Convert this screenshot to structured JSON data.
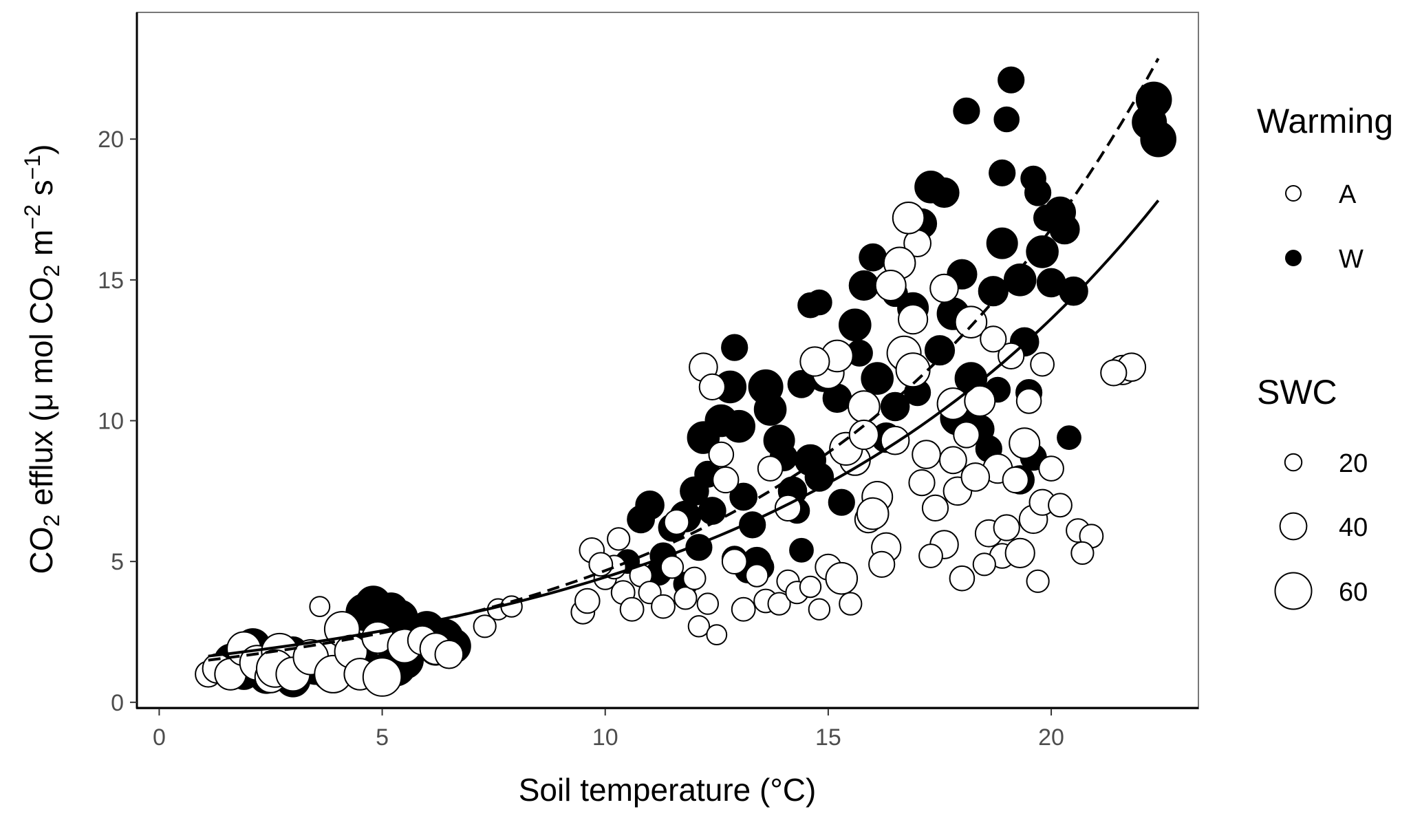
{
  "chart_data": {
    "type": "scatter",
    "xlabel": "Soil temperature (°C)",
    "ylabel_parts": [
      "CO",
      "2",
      " efflux (",
      "μ",
      " mol CO",
      "2",
      " m",
      "−2",
      " s",
      "−1",
      ")"
    ],
    "xlim": [
      -0.5,
      23.3
    ],
    "ylim": [
      -0.2,
      24.5
    ],
    "x_ticks": [
      0,
      5,
      10,
      15,
      20
    ],
    "y_ticks": [
      0,
      5,
      10,
      15,
      20
    ],
    "grid": false,
    "legend_position": "right",
    "legends": {
      "warming": {
        "title": "Warming",
        "items": [
          {
            "label": "A",
            "fill": "#ffffff"
          },
          {
            "label": "W",
            "fill": "#000000"
          }
        ]
      },
      "swc": {
        "title": "SWC",
        "items": [
          {
            "label": "20",
            "value": 20
          },
          {
            "label": "40",
            "value": 40
          },
          {
            "label": "60",
            "value": 60
          }
        ]
      }
    },
    "fits": [
      {
        "treatment": "A",
        "style": "solid",
        "a": 1.45,
        "b": 0.112,
        "x_range": [
          1.1,
          22.4
        ]
      },
      {
        "treatment": "W",
        "style": "dashed",
        "a": 1.3,
        "b": 0.128,
        "x_range": [
          1.1,
          22.4
        ]
      }
    ],
    "series": [
      {
        "treatment": "W",
        "fill": "#000000",
        "points": [
          [
            1.6,
            1.5,
            40
          ],
          [
            1.9,
            1.0,
            38
          ],
          [
            2.1,
            2.0,
            45
          ],
          [
            2.4,
            0.9,
            42
          ],
          [
            2.8,
            1.5,
            40
          ],
          [
            3.0,
            0.8,
            44
          ],
          [
            3.2,
            1.3,
            40
          ],
          [
            2.6,
            1.1,
            36
          ],
          [
            3.5,
            1.2,
            40
          ],
          [
            3.8,
            1.0,
            40
          ],
          [
            4.2,
            1.2,
            44
          ],
          [
            4.5,
            1.6,
            46
          ],
          [
            4.6,
            3.2,
            48
          ],
          [
            4.8,
            3.5,
            46
          ],
          [
            5.0,
            2.8,
            50
          ],
          [
            5.2,
            3.3,
            42
          ],
          [
            5.4,
            3.0,
            46
          ],
          [
            5.6,
            2.5,
            50
          ],
          [
            5.3,
            1.3,
            55
          ],
          [
            5.5,
            1.5,
            50
          ],
          [
            6.0,
            2.6,
            46
          ],
          [
            6.2,
            1.9,
            42
          ],
          [
            6.4,
            2.3,
            48
          ],
          [
            6.6,
            2.0,
            44
          ],
          [
            4.3,
            2.0,
            40
          ],
          [
            5.8,
            2.2,
            38
          ],
          [
            3.0,
            1.8,
            36
          ],
          [
            10.5,
            5.0,
            26
          ],
          [
            10.8,
            6.5,
            32
          ],
          [
            11.0,
            7.0,
            34
          ],
          [
            11.3,
            5.2,
            30
          ],
          [
            11.5,
            6.2,
            32
          ],
          [
            11.8,
            6.6,
            38
          ],
          [
            12.0,
            7.5,
            34
          ],
          [
            12.1,
            5.5,
            30
          ],
          [
            12.2,
            9.4,
            40
          ],
          [
            12.3,
            8.1,
            30
          ],
          [
            12.4,
            6.8,
            32
          ],
          [
            12.6,
            10.0,
            40
          ],
          [
            12.8,
            11.2,
            40
          ],
          [
            12.9,
            12.6,
            30
          ],
          [
            13.0,
            9.8,
            40
          ],
          [
            13.1,
            7.3,
            32
          ],
          [
            13.3,
            6.3,
            30
          ],
          [
            13.4,
            5.0,
            34
          ],
          [
            13.5,
            4.8,
            28
          ],
          [
            13.6,
            11.2,
            44
          ],
          [
            13.7,
            10.4,
            40
          ],
          [
            13.9,
            9.3,
            38
          ],
          [
            14.0,
            8.7,
            32
          ],
          [
            14.2,
            7.5,
            34
          ],
          [
            14.3,
            6.8,
            28
          ],
          [
            14.4,
            5.4,
            26
          ],
          [
            14.6,
            8.6,
            38
          ],
          [
            14.8,
            8.0,
            34
          ],
          [
            14.6,
            14.1,
            28
          ],
          [
            14.8,
            14.2,
            28
          ],
          [
            14.9,
            11.6,
            40
          ],
          [
            15.2,
            10.8,
            34
          ],
          [
            15.3,
            7.1,
            30
          ],
          [
            15.6,
            13.4,
            40
          ],
          [
            15.8,
            14.8,
            36
          ],
          [
            16.0,
            15.8,
            32
          ],
          [
            16.1,
            11.5,
            40
          ],
          [
            16.3,
            9.4,
            36
          ],
          [
            16.5,
            10.5,
            34
          ],
          [
            16.7,
            12.2,
            30
          ],
          [
            16.9,
            14.0,
            38
          ],
          [
            17.1,
            17.0,
            36
          ],
          [
            17.3,
            18.3,
            40
          ],
          [
            17.6,
            18.1,
            36
          ],
          [
            17.8,
            13.8,
            40
          ],
          [
            18.0,
            15.2,
            36
          ],
          [
            18.1,
            21.0,
            30
          ],
          [
            18.2,
            11.5,
            40
          ],
          [
            18.4,
            9.7,
            34
          ],
          [
            18.6,
            9.0,
            30
          ],
          [
            18.7,
            14.6,
            36
          ],
          [
            18.9,
            16.3,
            38
          ],
          [
            18.9,
            18.8,
            30
          ],
          [
            19.0,
            20.7,
            28
          ],
          [
            19.1,
            22.1,
            30
          ],
          [
            19.3,
            15.0,
            40
          ],
          [
            19.4,
            12.8,
            34
          ],
          [
            19.5,
            11.0,
            30
          ],
          [
            19.6,
            18.6,
            28
          ],
          [
            19.7,
            18.1,
            30
          ],
          [
            19.9,
            17.2,
            30
          ],
          [
            19.8,
            16.0,
            40
          ],
          [
            20.0,
            14.9,
            34
          ],
          [
            20.2,
            17.4,
            38
          ],
          [
            20.3,
            16.8,
            36
          ],
          [
            20.5,
            14.6,
            34
          ],
          [
            20.4,
            9.4,
            26
          ],
          [
            19.6,
            8.7,
            30
          ],
          [
            19.3,
            7.9,
            34
          ],
          [
            18.8,
            11.1,
            28
          ],
          [
            17.9,
            10.1,
            44
          ],
          [
            17.5,
            12.5,
            36
          ],
          [
            17.0,
            11.0,
            30
          ],
          [
            16.5,
            14.5,
            28
          ],
          [
            15.7,
            12.4,
            30
          ],
          [
            14.4,
            11.3,
            32
          ],
          [
            13.2,
            4.7,
            30
          ],
          [
            12.9,
            5.1,
            28
          ],
          [
            11.8,
            4.2,
            26
          ],
          [
            11.2,
            4.6,
            28
          ],
          [
            22.3,
            21.4,
            46
          ],
          [
            22.2,
            20.6,
            44
          ],
          [
            22.4,
            20.0,
            46
          ]
        ]
      },
      {
        "treatment": "A",
        "fill": "#ffffff",
        "points": [
          [
            1.1,
            1.0,
            30
          ],
          [
            1.3,
            1.2,
            36
          ],
          [
            1.6,
            1.0,
            40
          ],
          [
            1.9,
            1.9,
            44
          ],
          [
            2.2,
            1.4,
            46
          ],
          [
            2.5,
            0.9,
            40
          ],
          [
            2.7,
            1.8,
            48
          ],
          [
            2.6,
            1.2,
            50
          ],
          [
            3.0,
            1.0,
            44
          ],
          [
            3.4,
            1.6,
            46
          ],
          [
            3.6,
            3.4,
            20
          ],
          [
            3.9,
            1.0,
            50
          ],
          [
            4.1,
            2.6,
            46
          ],
          [
            4.3,
            1.8,
            42
          ],
          [
            4.5,
            1.0,
            40
          ],
          [
            4.9,
            2.3,
            40
          ],
          [
            5.0,
            0.9,
            52
          ],
          [
            5.5,
            2.0,
            44
          ],
          [
            5.9,
            2.2,
            36
          ],
          [
            6.2,
            1.9,
            40
          ],
          [
            6.5,
            1.7,
            34
          ],
          [
            7.3,
            2.7,
            24
          ],
          [
            7.6,
            3.3,
            22
          ],
          [
            7.9,
            3.4,
            22
          ],
          [
            9.5,
            3.2,
            26
          ],
          [
            9.6,
            3.6,
            28
          ],
          [
            9.7,
            5.4,
            28
          ],
          [
            10.0,
            4.4,
            24
          ],
          [
            10.2,
            4.8,
            26
          ],
          [
            10.4,
            3.9,
            26
          ],
          [
            10.6,
            3.3,
            26
          ],
          [
            10.8,
            4.5,
            24
          ],
          [
            11.0,
            3.9,
            24
          ],
          [
            11.3,
            3.4,
            26
          ],
          [
            11.5,
            4.8,
            24
          ],
          [
            11.8,
            3.7,
            24
          ],
          [
            12.0,
            4.4,
            24
          ],
          [
            12.1,
            2.7,
            22
          ],
          [
            12.3,
            3.5,
            22
          ],
          [
            12.5,
            2.4,
            20
          ],
          [
            12.2,
            11.9,
            34
          ],
          [
            12.4,
            11.2,
            30
          ],
          [
            12.6,
            8.8,
            28
          ],
          [
            12.9,
            5.0,
            28
          ],
          [
            13.1,
            3.3,
            26
          ],
          [
            13.4,
            4.5,
            24
          ],
          [
            13.6,
            3.6,
            26
          ],
          [
            13.9,
            3.5,
            24
          ],
          [
            14.1,
            4.3,
            24
          ],
          [
            14.1,
            6.9,
            30
          ],
          [
            14.3,
            3.9,
            24
          ],
          [
            14.6,
            4.1,
            22
          ],
          [
            14.8,
            3.3,
            22
          ],
          [
            15.0,
            4.8,
            30
          ],
          [
            15.0,
            11.7,
            40
          ],
          [
            15.2,
            12.3,
            40
          ],
          [
            15.3,
            4.4,
            40
          ],
          [
            15.5,
            3.5,
            24
          ],
          [
            15.6,
            8.6,
            38
          ],
          [
            15.8,
            10.5,
            40
          ],
          [
            15.9,
            6.5,
            32
          ],
          [
            16.1,
            7.3,
            38
          ],
          [
            16.3,
            5.5,
            36
          ],
          [
            16.5,
            9.3,
            34
          ],
          [
            16.7,
            12.4,
            44
          ],
          [
            16.9,
            13.6,
            36
          ],
          [
            17.0,
            16.3,
            32
          ],
          [
            17.2,
            8.8,
            34
          ],
          [
            17.4,
            6.9,
            30
          ],
          [
            17.6,
            5.6,
            34
          ],
          [
            17.6,
            14.7,
            34
          ],
          [
            17.8,
            10.6,
            40
          ],
          [
            17.9,
            7.5,
            34
          ],
          [
            18.0,
            4.4,
            28
          ],
          [
            18.1,
            9.5,
            30
          ],
          [
            18.2,
            13.5,
            40
          ],
          [
            18.4,
            10.7,
            38
          ],
          [
            18.6,
            6.0,
            32
          ],
          [
            18.8,
            8.3,
            36
          ],
          [
            18.9,
            5.2,
            28
          ],
          [
            19.1,
            12.3,
            30
          ],
          [
            19.2,
            7.9,
            30
          ],
          [
            19.3,
            5.3,
            36
          ],
          [
            19.4,
            9.2,
            38
          ],
          [
            19.5,
            10.7,
            28
          ],
          [
            19.6,
            6.5,
            34
          ],
          [
            19.8,
            7.1,
            30
          ],
          [
            20.0,
            8.3,
            28
          ],
          [
            20.2,
            7.0,
            26
          ],
          [
            16.8,
            17.2,
            40
          ],
          [
            16.6,
            15.6,
            40
          ],
          [
            16.4,
            14.8,
            38
          ],
          [
            16.9,
            11.8,
            44
          ],
          [
            17.3,
            5.2,
            26
          ],
          [
            18.5,
            4.9,
            24
          ],
          [
            19.7,
            4.3,
            24
          ],
          [
            20.6,
            6.1,
            26
          ],
          [
            20.9,
            5.9,
            26
          ],
          [
            20.7,
            5.3,
            24
          ],
          [
            21.6,
            11.8,
            36
          ],
          [
            21.8,
            11.9,
            34
          ],
          [
            21.4,
            11.7,
            30
          ],
          [
            15.4,
            9.0,
            42
          ],
          [
            16.0,
            6.7,
            40
          ],
          [
            14.7,
            12.1,
            36
          ],
          [
            13.7,
            8.3,
            28
          ],
          [
            12.7,
            7.9,
            30
          ],
          [
            11.6,
            6.4,
            28
          ],
          [
            10.3,
            5.8,
            24
          ],
          [
            9.9,
            4.9,
            26
          ],
          [
            18.3,
            8.0,
            34
          ],
          [
            17.8,
            8.6,
            32
          ],
          [
            19.0,
            6.2,
            30
          ],
          [
            16.2,
            4.9,
            30
          ],
          [
            17.1,
            7.8,
            30
          ],
          [
            18.7,
            12.9,
            30
          ],
          [
            19.8,
            12.0,
            26
          ],
          [
            15.8,
            9.5,
            36
          ]
        ]
      }
    ]
  }
}
